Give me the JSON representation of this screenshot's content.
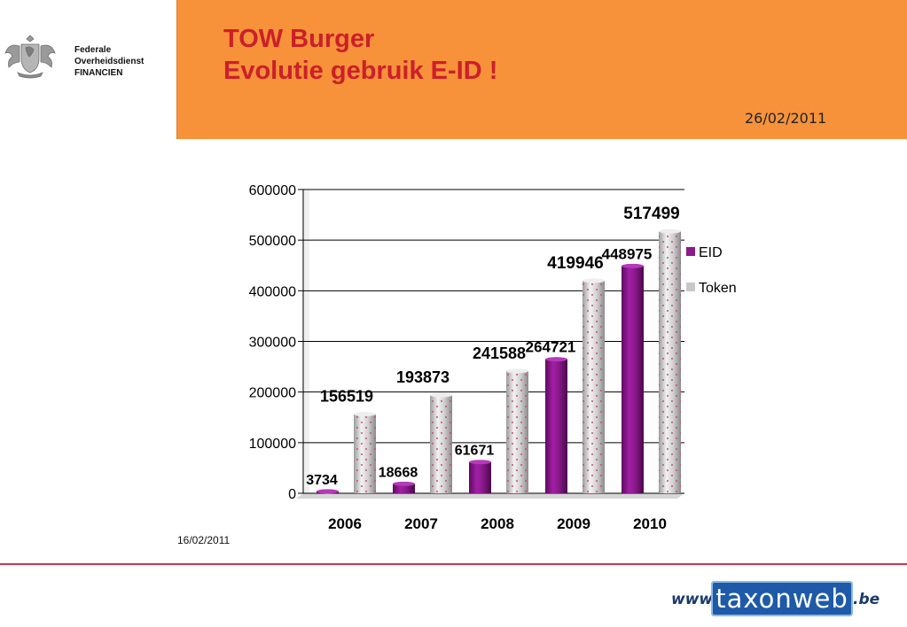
{
  "header": {
    "agency_lines": [
      "Federale",
      "Overheidsdienst",
      "FINANCIEN"
    ],
    "title_lines": [
      "TOW Burger",
      "Evolutie gebruik E-ID !"
    ],
    "date": "26/02/2011"
  },
  "footer": {
    "date": "16/02/2011",
    "logo_prefix": "www.",
    "logo_name": "taxonweb",
    "logo_suffix": ".be"
  },
  "colors": {
    "header_band": "#f7923a",
    "title": "#cc1f2a",
    "eid": "#8b1a8c",
    "token": "#c8c8c8"
  },
  "chart_data": {
    "type": "bar",
    "categories": [
      "2006",
      "2007",
      "2008",
      "2009",
      "2010"
    ],
    "series": [
      {
        "name": "EID",
        "values": [
          3734,
          18668,
          61671,
          264721,
          448975
        ]
      },
      {
        "name": "Token",
        "values": [
          156519,
          193873,
          241588,
          419946,
          517499
        ]
      }
    ],
    "ylim": [
      0,
      600000
    ],
    "yticks": [
      0,
      100000,
      200000,
      300000,
      400000,
      500000,
      600000
    ],
    "grid": true,
    "legend": "right"
  }
}
